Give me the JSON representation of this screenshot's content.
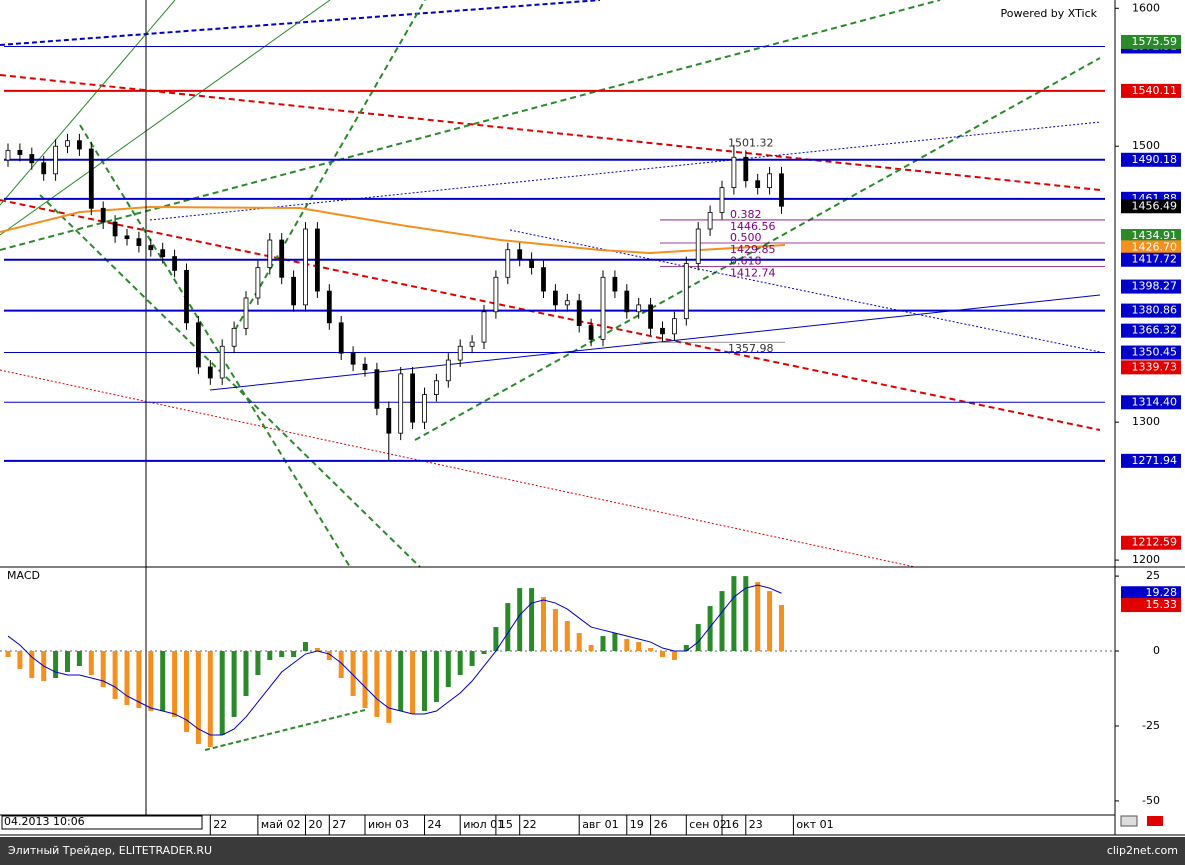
{
  "chart_data": {
    "type": "candlestick",
    "watermark": "Powered by XTick",
    "cursor_label": "04.2013 10:06",
    "ylim": [
      1195,
      1606
    ],
    "yticks": [
      1600,
      1500,
      1300,
      1200
    ],
    "xticks": [
      {
        "value": 17,
        "label": "22"
      },
      {
        "value": 21,
        "label": "май 02"
      },
      {
        "value": 25,
        "label": "20"
      },
      {
        "value": 27,
        "label": "27"
      },
      {
        "value": 30,
        "label": "июн 03"
      },
      {
        "value": 35,
        "label": "24"
      },
      {
        "value": 38,
        "label": "июл 01"
      },
      {
        "value": 41,
        "label": "15"
      },
      {
        "value": 43,
        "label": "22"
      },
      {
        "value": 48,
        "label": "авг 01"
      },
      {
        "value": 52,
        "label": "19"
      },
      {
        "value": 54,
        "label": "26"
      },
      {
        "value": 57,
        "label": "сен 02"
      },
      {
        "value": 60,
        "label": "16"
      },
      {
        "value": 62,
        "label": "23"
      },
      {
        "value": 66,
        "label": "окт 01"
      }
    ],
    "ohlc": [
      [
        1490,
        1502,
        1485,
        1497
      ],
      [
        1497,
        1502,
        1489,
        1494
      ],
      [
        1494,
        1499,
        1483,
        1488
      ],
      [
        1488,
        1493,
        1475,
        1480
      ],
      [
        1480,
        1505,
        1475,
        1500
      ],
      [
        1500,
        1509,
        1495,
        1504
      ],
      [
        1504,
        1509,
        1493,
        1498
      ],
      [
        1498,
        1503,
        1450,
        1455
      ],
      [
        1455,
        1460,
        1440,
        1445
      ],
      [
        1445,
        1450,
        1430,
        1435
      ],
      [
        1435,
        1440,
        1428,
        1433
      ],
      [
        1433,
        1438,
        1423,
        1428
      ],
      [
        1428,
        1433,
        1420,
        1425
      ],
      [
        1425,
        1430,
        1415,
        1420
      ],
      [
        1420,
        1425,
        1405,
        1410
      ],
      [
        1410,
        1415,
        1367,
        1372
      ],
      [
        1372,
        1377,
        1335,
        1340
      ],
      [
        1340,
        1345,
        1327,
        1332
      ],
      [
        1332,
        1360,
        1327,
        1355
      ],
      [
        1355,
        1373,
        1350,
        1368
      ],
      [
        1368,
        1395,
        1363,
        1390
      ],
      [
        1390,
        1417,
        1385,
        1412
      ],
      [
        1412,
        1437,
        1407,
        1432
      ],
      [
        1432,
        1437,
        1400,
        1405
      ],
      [
        1405,
        1410,
        1380,
        1385
      ],
      [
        1385,
        1445,
        1380,
        1440
      ],
      [
        1440,
        1445,
        1390,
        1395
      ],
      [
        1395,
        1400,
        1367,
        1372
      ],
      [
        1372,
        1377,
        1345,
        1350
      ],
      [
        1350,
        1355,
        1337,
        1342
      ],
      [
        1342,
        1347,
        1333,
        1338
      ],
      [
        1338,
        1343,
        1305,
        1310
      ],
      [
        1310,
        1315,
        1272,
        1292
      ],
      [
        1292,
        1340,
        1287,
        1335
      ],
      [
        1335,
        1340,
        1295,
        1300
      ],
      [
        1300,
        1325,
        1295,
        1320
      ],
      [
        1320,
        1335,
        1315,
        1330
      ],
      [
        1330,
        1350,
        1325,
        1345
      ],
      [
        1345,
        1360,
        1340,
        1355
      ],
      [
        1355,
        1363,
        1350,
        1358
      ],
      [
        1358,
        1385,
        1353,
        1380
      ],
      [
        1380,
        1410,
        1375,
        1405
      ],
      [
        1405,
        1430,
        1400,
        1425
      ],
      [
        1425,
        1430,
        1413,
        1418
      ],
      [
        1418,
        1423,
        1407,
        1412
      ],
      [
        1412,
        1417,
        1390,
        1395
      ],
      [
        1395,
        1400,
        1380,
        1385
      ],
      [
        1385,
        1393,
        1380,
        1388
      ],
      [
        1388,
        1393,
        1365,
        1370
      ],
      [
        1370,
        1375,
        1355,
        1360
      ],
      [
        1360,
        1410,
        1355,
        1405
      ],
      [
        1405,
        1410,
        1390,
        1395
      ],
      [
        1395,
        1400,
        1375,
        1380
      ],
      [
        1380,
        1390,
        1375,
        1385
      ],
      [
        1385,
        1390,
        1363,
        1368
      ],
      [
        1368,
        1373,
        1358,
        1364
      ],
      [
        1364,
        1380,
        1359,
        1375
      ],
      [
        1375,
        1420,
        1370,
        1415
      ],
      [
        1415,
        1445,
        1410,
        1440
      ],
      [
        1440,
        1457,
        1435,
        1452
      ],
      [
        1452,
        1475,
        1447,
        1470
      ],
      [
        1470,
        1501,
        1465,
        1492
      ],
      [
        1492,
        1497,
        1470,
        1475
      ],
      [
        1475,
        1480,
        1465,
        1470
      ],
      [
        1470,
        1485,
        1465,
        1480
      ],
      [
        1480,
        1485,
        1451,
        1456.49
      ]
    ],
    "levels": [
      {
        "price": 1572.31,
        "color": "#0000c8",
        "line_width": 1
      },
      {
        "price": 1575.59,
        "color": "#2a8a2a",
        "line_width": 0
      },
      {
        "price": 1540.11,
        "color": "#e00000",
        "line_width": 2
      },
      {
        "price": 1490.18,
        "color": "#0000c8",
        "line_width": 2
      },
      {
        "price": 1461.88,
        "color": "#0000c8",
        "line_width": 2
      },
      {
        "price": 1456.49,
        "color": "#000000",
        "line_width": 0
      },
      {
        "price": 1434.91,
        "color": "#2a8a2a",
        "line_width": 0
      },
      {
        "price": {
          "value": 1426.7,
          "label": "1426.70"
        },
        "color": "#f39020",
        "line_width": 0
      },
      {
        "price": 1417.72,
        "color": "#0000c8",
        "line_width": 2
      },
      {
        "price": 1398.27,
        "color": "#0000c8",
        "line_width": 0
      },
      {
        "price": 1380.86,
        "color": "#0000c8",
        "line_width": 2
      },
      {
        "price": 1366.32,
        "color": "#0000c8",
        "line_width": 0
      },
      {
        "price": 1350.45,
        "color": "#0000c8",
        "line_width": 1
      },
      {
        "price": 1339.73,
        "color": "#e00000",
        "line_width": 0
      },
      {
        "price": {
          "value": 1314.4,
          "label": "1314.40"
        },
        "color": "#0000c8",
        "line_width": 1
      },
      {
        "price": 1271.94,
        "color": "#0000c8",
        "line_width": 2
      },
      {
        "price": 1212.59,
        "color": "#e00000",
        "line_width": 0
      }
    ],
    "fibonacci": {
      "high": 1501.32,
      "low": 1357.98,
      "levels": [
        {
          "ratio": 0.382,
          "price": 1446.56
        },
        {
          "ratio": {
            "value": 0.5,
            "label": "0.500"
          },
          "price": 1429.85
        },
        {
          "ratio": 0.618,
          "price": 1412.74
        }
      ]
    },
    "macd": {
      "type": "bar",
      "title": "MACD",
      "ylim": [
        -54.7,
        27.7
      ],
      "yticks": [
        25,
        0,
        -25,
        -50
      ],
      "histogram": [
        -2,
        -6,
        -9,
        -10,
        -9,
        -7,
        -5,
        -8,
        -12,
        -16,
        -18,
        -19,
        -20,
        -20,
        -22,
        -27,
        -31,
        -32,
        -28,
        -22,
        -15,
        -8,
        -3,
        -2,
        -2,
        3,
        1,
        -3,
        -9,
        -15,
        -19,
        -22,
        -24,
        -20,
        -21,
        -20,
        -17,
        -12,
        -8,
        -5,
        -1,
        8,
        16,
        21,
        21,
        18,
        14,
        10,
        6,
        2,
        5,
        6,
        4,
        3,
        1,
        -2,
        -3,
        2,
        9,
        15,
        20,
        25,
        25,
        23,
        20,
        15.33
      ],
      "rise_color": "#2a8a2a",
      "fall_color": "#f39020",
      "signal": {
        "color": "#0000c8",
        "values": [
          5,
          2,
          -2,
          -5,
          -7,
          -8,
          -8,
          -9,
          -10,
          -12,
          -15,
          -17,
          -19,
          -20,
          -21,
          -23,
          -26,
          -28,
          -28,
          -26,
          -22,
          -17,
          -12,
          -7,
          -4,
          -1,
          0,
          -1,
          -4,
          -8,
          -12,
          -16,
          -19,
          -20,
          -21,
          -21,
          -20,
          -17,
          -14,
          -10,
          -5,
          0,
          6,
          12,
          16,
          17,
          16,
          14,
          11,
          8,
          7,
          6,
          5,
          4,
          3,
          1,
          0,
          0,
          3,
          8,
          13,
          18,
          21,
          22,
          21,
          19.28
        ]
      },
      "labels": [
        {
          "value": 19.28,
          "color": "#0000c8"
        },
        {
          "value": 15.33,
          "color": "#e00000"
        }
      ]
    }
  },
  "footer": {
    "left": "Элитный Трейдер, ELITETRADER.RU",
    "right": "clip2net.com"
  }
}
